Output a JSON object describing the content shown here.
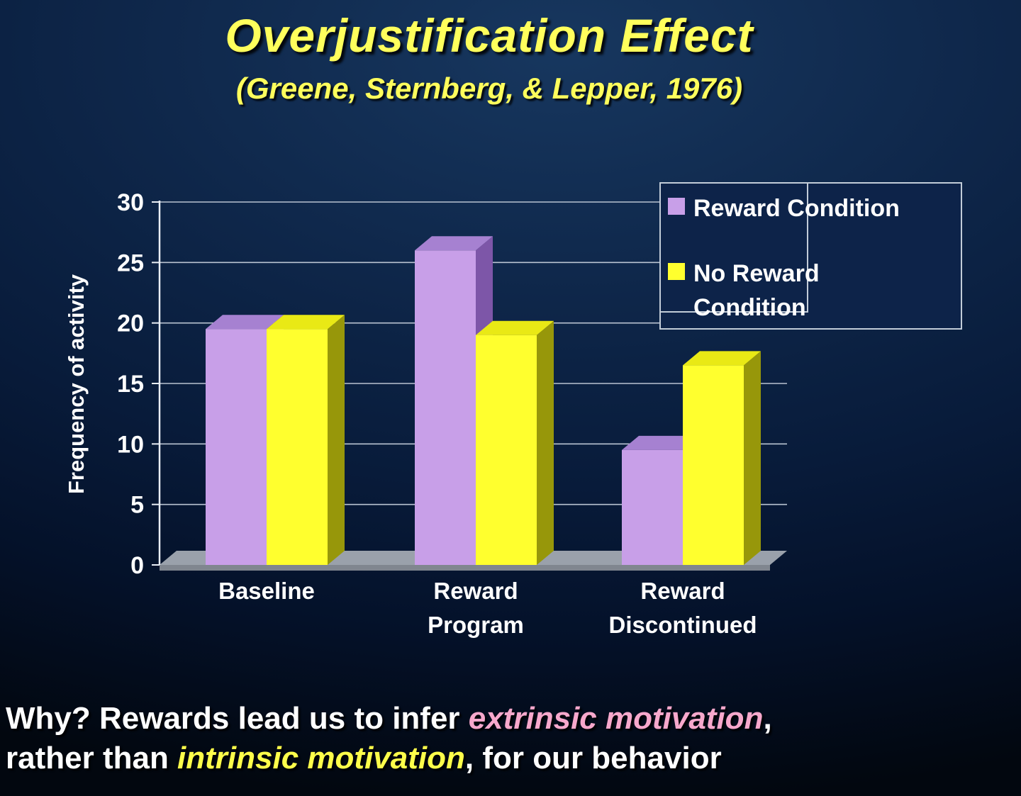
{
  "slide": {
    "title": "Overjustification Effect",
    "subtitle": "(Greene, Sternberg, & Lepper, 1976)"
  },
  "chart_data": {
    "type": "bar",
    "style": "3d-column",
    "title": "",
    "categories": [
      "Baseline",
      "Reward Program",
      "Reward Discontinued"
    ],
    "category_label_lines": [
      [
        "Baseline"
      ],
      [
        "Reward",
        "Program"
      ],
      [
        "Reward",
        "Discontinued"
      ]
    ],
    "series": [
      {
        "name": "Reward Condition",
        "values": [
          19.5,
          26,
          9.5
        ],
        "front_color": "#c89fe8",
        "top_color": "#a681d1",
        "side_color": "#7d56a8"
      },
      {
        "name": "No Reward Condition",
        "values": [
          19.5,
          19,
          16.5
        ],
        "front_color": "#ffff2e",
        "top_color": "#e9e915",
        "side_color": "#97970a"
      }
    ],
    "xlabel": "",
    "ylabel": "Frequency of activity",
    "ylim": [
      0,
      30
    ],
    "yticks": [
      0,
      5,
      10,
      15,
      20,
      25,
      30
    ],
    "grid": true,
    "legend_position": "top-right"
  },
  "footer": {
    "segments": [
      {
        "text": "Why? Rewards lead us to infer ",
        "color": "white",
        "italic": false
      },
      {
        "text": "extrinsic motivation",
        "color": "pink",
        "italic": true
      },
      {
        "text": ",",
        "color": "white",
        "italic": false,
        "line_break_after": true
      },
      {
        "text": "rather than ",
        "color": "white",
        "italic": false
      },
      {
        "text": "intrinsic motivation",
        "color": "yellow",
        "italic": true
      },
      {
        "text": ", for our behavior",
        "color": "white",
        "italic": false
      }
    ]
  },
  "colors": {
    "white": "#ffffff",
    "pink": "#f7a8cc",
    "yellow": "#ffff4a",
    "title_yellow": "#ffff5c",
    "chart_text": "#ffffff",
    "gridline": "#b9c3d1",
    "axis": "#e9eef5",
    "floor_top": "#9aa1ab",
    "floor_edge": "#80868f",
    "legend_border": "#c2ccd8"
  }
}
